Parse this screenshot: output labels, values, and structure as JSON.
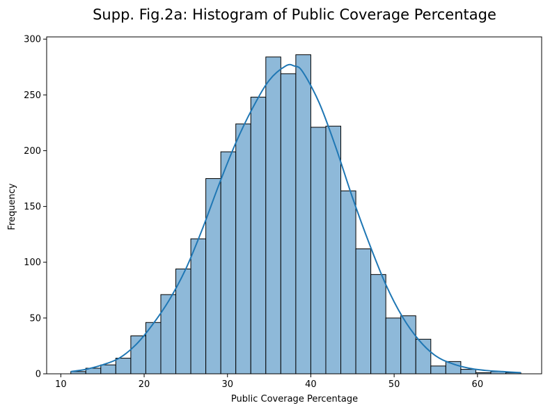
{
  "chart_data": {
    "type": "bar",
    "title": "Supp. Fig.2a: Histogram of Public Coverage Percentage",
    "xlabel": "Public Coverage Percentage",
    "ylabel": "Frequency",
    "xlim": [
      8.3,
      67.7
    ],
    "ylim": [
      0,
      302
    ],
    "xticks": [
      10,
      20,
      30,
      40,
      50,
      60
    ],
    "yticks": [
      0,
      50,
      100,
      150,
      200,
      250,
      300
    ],
    "bin_edges": [
      11.2,
      13.0,
      14.8,
      16.6,
      18.4,
      20.2,
      22.0,
      23.8,
      25.6,
      27.4,
      29.2,
      31.0,
      32.8,
      34.6,
      36.4,
      38.2,
      40.0,
      41.8,
      43.6,
      45.4,
      47.2,
      49.0,
      50.8,
      52.6,
      54.4,
      56.2,
      58.0,
      59.8,
      61.6,
      63.4,
      65.2
    ],
    "values": [
      2,
      5,
      8,
      14,
      34,
      46,
      71,
      94,
      121,
      175,
      199,
      224,
      248,
      284,
      269,
      286,
      221,
      222,
      164,
      112,
      89,
      50,
      52,
      31,
      7,
      11,
      4,
      1,
      2,
      1
    ],
    "kde": {
      "x": [
        11.2,
        13,
        15,
        17,
        19,
        21,
        23,
        25,
        27,
        29,
        31,
        33,
        35,
        37,
        38,
        39,
        41,
        43,
        45,
        47,
        49,
        51,
        53,
        55,
        57,
        59,
        61,
        63,
        65.2
      ],
      "y": [
        2,
        4,
        8,
        14,
        26,
        44,
        66,
        94,
        130,
        170,
        207,
        238,
        263,
        276,
        276,
        271,
        243,
        203,
        158,
        117,
        80,
        51,
        30,
        16,
        9,
        5,
        3,
        2,
        1
      ]
    },
    "colors": {
      "bar_fill": "#8eb9d9",
      "bar_edge": "#000000",
      "kde_line": "#1f77b4"
    },
    "grid": false,
    "legend": "none"
  }
}
